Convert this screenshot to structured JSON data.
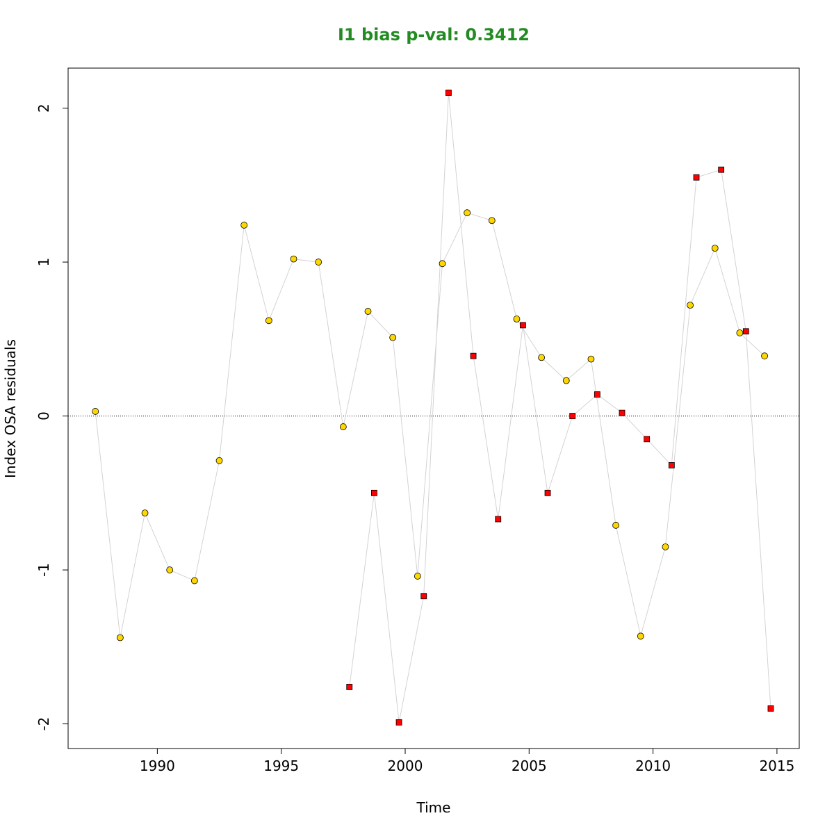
{
  "colors": {
    "title": "#228B22",
    "series_circle_fill": "#FFD700",
    "series_square_fill": "#FF0000",
    "marker_stroke": "#000000",
    "connector_line": "#D3D3D3",
    "zero_line": "#000000"
  },
  "chart_data": {
    "type": "scatter",
    "title": "I1 bias p-val: 0.3412",
    "xlabel": "Time",
    "ylabel": "Index OSA residuals",
    "xlim": [
      1986.4,
      2015.9
    ],
    "ylim": [
      -2.16,
      2.26
    ],
    "x_ticks": [
      1990,
      1995,
      2000,
      2005,
      2010,
      2015
    ],
    "y_ticks": [
      -2,
      -1,
      0,
      1,
      2
    ],
    "reference_line": {
      "y": 0,
      "style": "dotted"
    },
    "grid": false,
    "series": [
      {
        "marker": "circle",
        "points": [
          [
            1987.5,
            0.03
          ],
          [
            1988.5,
            -1.44
          ],
          [
            1989.5,
            -0.63
          ],
          [
            1990.5,
            -1.0
          ],
          [
            1991.5,
            -1.07
          ],
          [
            1992.5,
            -0.29
          ],
          [
            1993.5,
            1.24
          ],
          [
            1994.5,
            0.62
          ],
          [
            1995.5,
            1.02
          ],
          [
            1996.5,
            1.0
          ],
          [
            1997.5,
            -0.07
          ],
          [
            1998.5,
            0.68
          ],
          [
            1999.5,
            0.51
          ],
          [
            2000.5,
            -1.04
          ],
          [
            2001.5,
            0.99
          ],
          [
            2002.5,
            1.32
          ],
          [
            2003.5,
            1.27
          ],
          [
            2004.5,
            0.63
          ],
          [
            2005.5,
            0.38
          ],
          [
            2006.5,
            0.23
          ],
          [
            2007.5,
            0.37
          ],
          [
            2008.5,
            -0.71
          ],
          [
            2009.5,
            -1.43
          ],
          [
            2010.5,
            -0.85
          ],
          [
            2011.5,
            0.72
          ],
          [
            2012.5,
            1.09
          ],
          [
            2013.5,
            0.54
          ],
          [
            2014.5,
            0.39
          ]
        ]
      },
      {
        "marker": "square",
        "points": [
          [
            1997.75,
            -1.76
          ],
          [
            1998.75,
            -0.5
          ],
          [
            1999.75,
            -1.99
          ],
          [
            2000.75,
            -1.17
          ],
          [
            2001.75,
            2.1
          ],
          [
            2002.75,
            0.39
          ],
          [
            2003.75,
            -0.67
          ],
          [
            2004.75,
            0.59
          ],
          [
            2005.75,
            -0.5
          ],
          [
            2006.75,
            0.0
          ],
          [
            2007.75,
            0.14
          ],
          [
            2008.75,
            0.02
          ],
          [
            2009.75,
            -0.15
          ],
          [
            2010.75,
            -0.32
          ],
          [
            2011.75,
            1.55
          ],
          [
            2012.75,
            1.6
          ],
          [
            2013.75,
            0.55
          ],
          [
            2014.75,
            -1.9
          ]
        ]
      }
    ]
  }
}
